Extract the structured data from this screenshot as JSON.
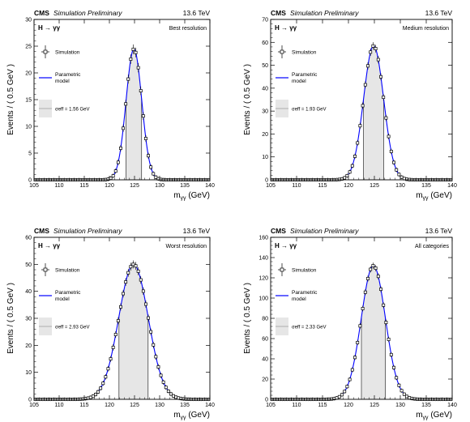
{
  "common": {
    "cms_label": "CMS",
    "sim_label": "Simulation Preliminary",
    "energy_label": "13.6 TeV",
    "process_label": "H → γγ",
    "xlabel": "mγγ (GeV)",
    "ylabel": "Events / ( 0.5 GeV )",
    "legend_sim": "Simulation",
    "legend_model_line1": "Parametric",
    "legend_model_line2": "model",
    "sim_color": "#000000",
    "model_color": "#0000ff",
    "band_color": "#e6e6e6",
    "x_ticks": [
      105,
      110,
      115,
      120,
      125,
      130,
      135,
      140
    ]
  },
  "chart_data": [
    {
      "type": "line",
      "category_label": "Best resolution",
      "sigma_eff_label": "σeff = 1.56 GeV",
      "mean": 124.88,
      "sigma": 1.56,
      "peak": 24.5,
      "xlim": [
        105,
        140
      ],
      "ylim": [
        0,
        30
      ],
      "y_ticks": [
        0,
        5,
        10,
        15,
        20,
        25,
        30
      ],
      "band": [
        123.3,
        126.4
      ]
    },
    {
      "type": "line",
      "category_label": "Medium resolution",
      "sigma_eff_label": "σeff = 1.93 GeV",
      "mean": 124.85,
      "sigma": 1.93,
      "peak": 58.5,
      "xlim": [
        105,
        140
      ],
      "ylim": [
        0,
        70
      ],
      "y_ticks": [
        0,
        10,
        20,
        30,
        40,
        50,
        60,
        70
      ],
      "band": [
        122.9,
        126.8
      ]
    },
    {
      "type": "line",
      "category_label": "Worst resolution",
      "sigma_eff_label": "σeff = 2.93 GeV",
      "mean": 124.8,
      "sigma": 2.93,
      "peak": 50,
      "xlim": [
        105,
        140
      ],
      "ylim": [
        0,
        60
      ],
      "y_ticks": [
        0,
        10,
        20,
        30,
        40,
        50,
        60
      ],
      "band": [
        121.9,
        127.7
      ]
    },
    {
      "type": "line",
      "category_label": "All categories",
      "sigma_eff_label": "σeff = 2.33 GeV",
      "mean": 124.8,
      "sigma": 2.33,
      "peak": 132,
      "xlim": [
        105,
        140
      ],
      "ylim": [
        0,
        160
      ],
      "y_ticks": [
        0,
        20,
        40,
        60,
        80,
        100,
        120,
        140,
        160
      ],
      "band": [
        122.5,
        127.1
      ]
    }
  ]
}
